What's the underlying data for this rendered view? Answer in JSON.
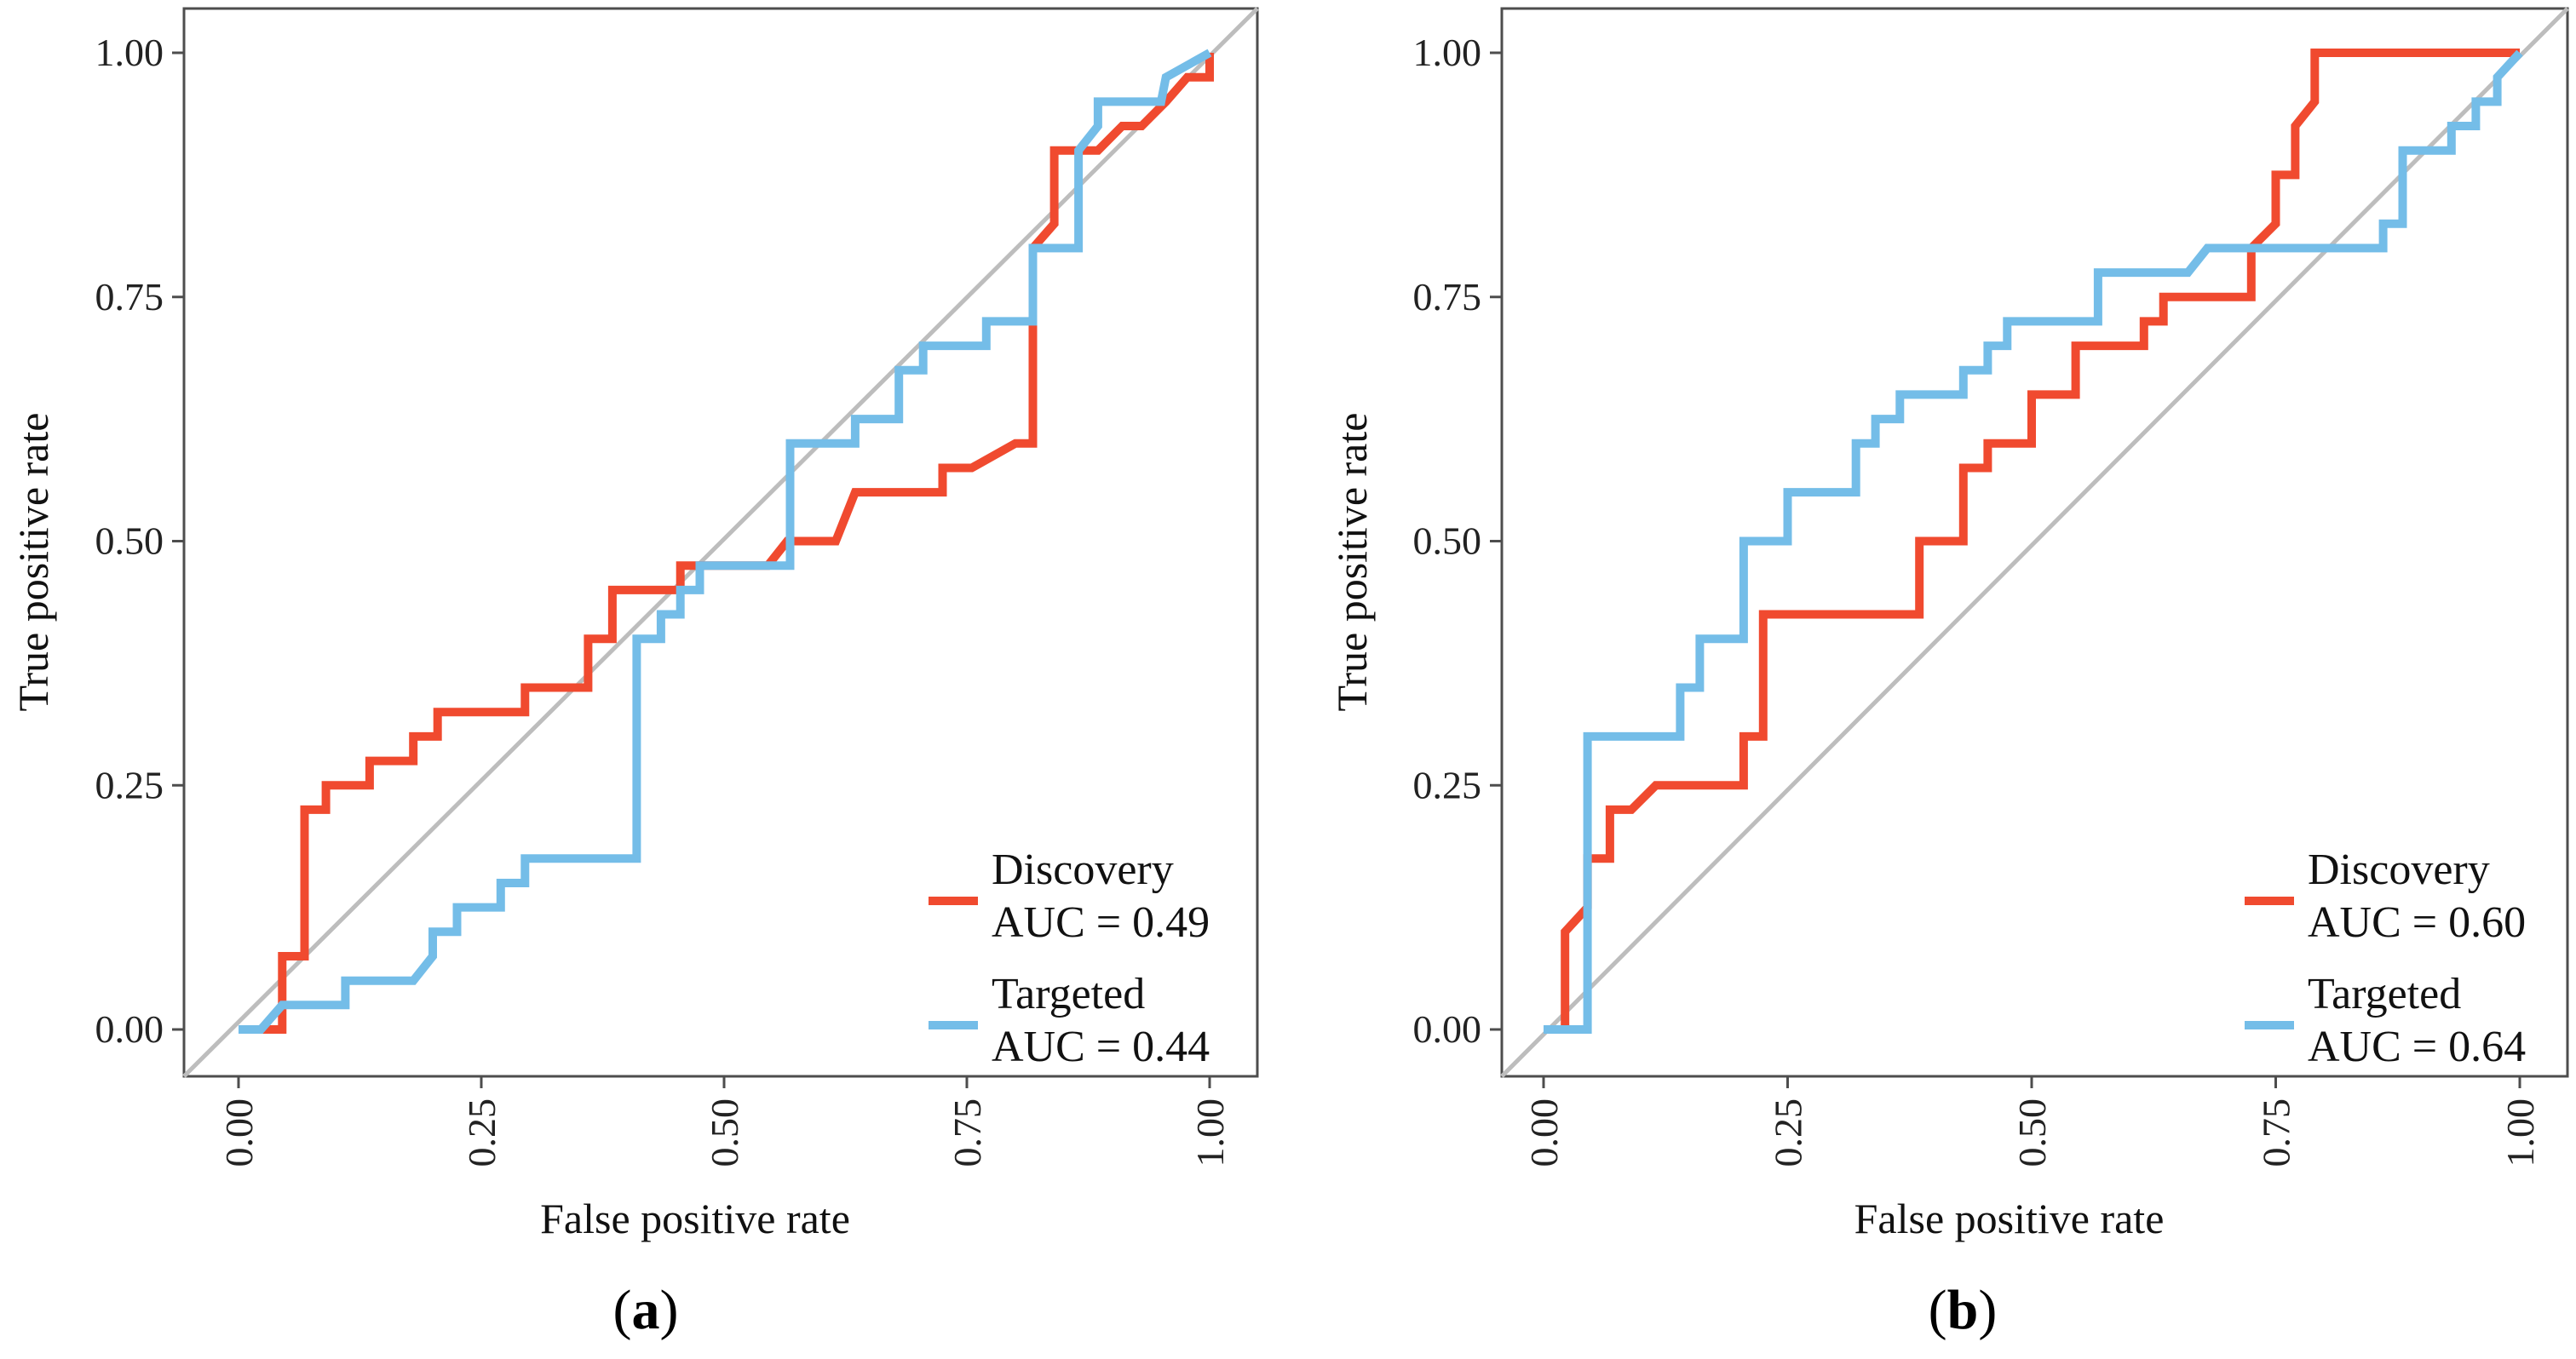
{
  "chart_data": [
    {
      "type": "line",
      "panel": "a",
      "caption": {
        "open": "(",
        "letter": "a",
        "close": ")"
      },
      "xlabel": "False positive rate",
      "ylabel": "True positive rate",
      "xlim": [
        0,
        1
      ],
      "ylim": [
        0,
        1
      ],
      "ticks": [
        0.0,
        0.25,
        0.5,
        0.75,
        1.0
      ],
      "tick_labels": [
        "0.00",
        "0.25",
        "0.50",
        "0.75",
        "1.00"
      ],
      "grid": false,
      "legend_position": "bottom-right",
      "diagonal": true,
      "series": [
        {
          "name": "Discovery",
          "auc_label": "AUC = 0.49",
          "color": "#f04a2f",
          "points": [
            [
              0,
              0
            ],
            [
              0.045,
              0
            ],
            [
              0.045,
              0.075
            ],
            [
              0.068,
              0.075
            ],
            [
              0.068,
              0.225
            ],
            [
              0.09,
              0.225
            ],
            [
              0.09,
              0.25
            ],
            [
              0.135,
              0.25
            ],
            [
              0.135,
              0.275
            ],
            [
              0.18,
              0.275
            ],
            [
              0.18,
              0.3
            ],
            [
              0.205,
              0.3
            ],
            [
              0.205,
              0.325
            ],
            [
              0.295,
              0.325
            ],
            [
              0.295,
              0.35
            ],
            [
              0.36,
              0.35
            ],
            [
              0.36,
              0.4
            ],
            [
              0.385,
              0.4
            ],
            [
              0.385,
              0.45
            ],
            [
              0.455,
              0.45
            ],
            [
              0.455,
              0.475
            ],
            [
              0.545,
              0.475
            ],
            [
              0.565,
              0.5
            ],
            [
              0.615,
              0.5
            ],
            [
              0.635,
              0.55
            ],
            [
              0.725,
              0.55
            ],
            [
              0.725,
              0.575
            ],
            [
              0.755,
              0.575
            ],
            [
              0.8,
              0.6
            ],
            [
              0.818,
              0.6
            ],
            [
              0.818,
              0.8
            ],
            [
              0.84,
              0.825
            ],
            [
              0.84,
              0.9
            ],
            [
              0.885,
              0.9
            ],
            [
              0.91,
              0.925
            ],
            [
              0.93,
              0.925
            ],
            [
              0.955,
              0.95
            ],
            [
              0.977,
              0.975
            ],
            [
              1.0,
              0.975
            ],
            [
              1.0,
              1.0
            ]
          ]
        },
        {
          "name": "Targeted",
          "auc_label": "AUC = 0.44",
          "color": "#74bde8",
          "points": [
            [
              0,
              0
            ],
            [
              0.023,
              0
            ],
            [
              0.045,
              0.025
            ],
            [
              0.11,
              0.025
            ],
            [
              0.11,
              0.05
            ],
            [
              0.18,
              0.05
            ],
            [
              0.2,
              0.075
            ],
            [
              0.2,
              0.1
            ],
            [
              0.225,
              0.1
            ],
            [
              0.225,
              0.125
            ],
            [
              0.27,
              0.125
            ],
            [
              0.27,
              0.15
            ],
            [
              0.295,
              0.15
            ],
            [
              0.295,
              0.175
            ],
            [
              0.41,
              0.175
            ],
            [
              0.41,
              0.4
            ],
            [
              0.435,
              0.4
            ],
            [
              0.435,
              0.425
            ],
            [
              0.455,
              0.425
            ],
            [
              0.455,
              0.45
            ],
            [
              0.475,
              0.45
            ],
            [
              0.475,
              0.475
            ],
            [
              0.568,
              0.475
            ],
            [
              0.568,
              0.6
            ],
            [
              0.635,
              0.6
            ],
            [
              0.635,
              0.625
            ],
            [
              0.68,
              0.625
            ],
            [
              0.68,
              0.675
            ],
            [
              0.705,
              0.675
            ],
            [
              0.705,
              0.7
            ],
            [
              0.77,
              0.7
            ],
            [
              0.77,
              0.725
            ],
            [
              0.818,
              0.725
            ],
            [
              0.818,
              0.8
            ],
            [
              0.865,
              0.8
            ],
            [
              0.865,
              0.9
            ],
            [
              0.885,
              0.925
            ],
            [
              0.885,
              0.95
            ],
            [
              0.95,
              0.95
            ],
            [
              0.955,
              0.975
            ],
            [
              1.0,
              1.0
            ]
          ]
        }
      ]
    },
    {
      "type": "line",
      "panel": "b",
      "caption": {
        "open": "(",
        "letter": "b",
        "close": ")"
      },
      "xlabel": "False positive rate",
      "ylabel": "True positive rate",
      "xlim": [
        0,
        1
      ],
      "ylim": [
        0,
        1
      ],
      "ticks": [
        0.0,
        0.25,
        0.5,
        0.75,
        1.0
      ],
      "tick_labels": [
        "0.00",
        "0.25",
        "0.50",
        "0.75",
        "1.00"
      ],
      "grid": false,
      "legend_position": "bottom-right",
      "diagonal": true,
      "series": [
        {
          "name": "Discovery",
          "auc_label": "AUC = 0.60",
          "color": "#f04a2f",
          "points": [
            [
              0,
              0
            ],
            [
              0.022,
              0
            ],
            [
              0.022,
              0.1
            ],
            [
              0.045,
              0.125
            ],
            [
              0.045,
              0.175
            ],
            [
              0.068,
              0.175
            ],
            [
              0.068,
              0.225
            ],
            [
              0.09,
              0.225
            ],
            [
              0.115,
              0.25
            ],
            [
              0.205,
              0.25
            ],
            [
              0.205,
              0.3
            ],
            [
              0.225,
              0.3
            ],
            [
              0.225,
              0.425
            ],
            [
              0.385,
              0.425
            ],
            [
              0.385,
              0.5
            ],
            [
              0.43,
              0.5
            ],
            [
              0.43,
              0.575
            ],
            [
              0.455,
              0.575
            ],
            [
              0.455,
              0.6
            ],
            [
              0.5,
              0.6
            ],
            [
              0.5,
              0.65
            ],
            [
              0.545,
              0.65
            ],
            [
              0.545,
              0.7
            ],
            [
              0.615,
              0.7
            ],
            [
              0.615,
              0.725
            ],
            [
              0.635,
              0.725
            ],
            [
              0.635,
              0.75
            ],
            [
              0.725,
              0.75
            ],
            [
              0.725,
              0.8
            ],
            [
              0.75,
              0.825
            ],
            [
              0.75,
              0.875
            ],
            [
              0.77,
              0.875
            ],
            [
              0.77,
              0.925
            ],
            [
              0.79,
              0.95
            ],
            [
              0.79,
              1.0
            ],
            [
              1.0,
              1.0
            ]
          ]
        },
        {
          "name": "Targeted",
          "auc_label": "AUC = 0.64",
          "color": "#74bde8",
          "points": [
            [
              0,
              0
            ],
            [
              0.045,
              0
            ],
            [
              0.045,
              0.3
            ],
            [
              0.14,
              0.3
            ],
            [
              0.14,
              0.35
            ],
            [
              0.16,
              0.35
            ],
            [
              0.16,
              0.4
            ],
            [
              0.205,
              0.4
            ],
            [
              0.205,
              0.5
            ],
            [
              0.25,
              0.5
            ],
            [
              0.25,
              0.55
            ],
            [
              0.32,
              0.55
            ],
            [
              0.32,
              0.6
            ],
            [
              0.34,
              0.6
            ],
            [
              0.34,
              0.625
            ],
            [
              0.365,
              0.625
            ],
            [
              0.365,
              0.65
            ],
            [
              0.43,
              0.65
            ],
            [
              0.43,
              0.675
            ],
            [
              0.455,
              0.675
            ],
            [
              0.455,
              0.7
            ],
            [
              0.475,
              0.7
            ],
            [
              0.475,
              0.725
            ],
            [
              0.568,
              0.725
            ],
            [
              0.568,
              0.775
            ],
            [
              0.66,
              0.775
            ],
            [
              0.68,
              0.8
            ],
            [
              0.86,
              0.8
            ],
            [
              0.86,
              0.825
            ],
            [
              0.88,
              0.825
            ],
            [
              0.88,
              0.9
            ],
            [
              0.93,
              0.9
            ],
            [
              0.93,
              0.925
            ],
            [
              0.955,
              0.925
            ],
            [
              0.955,
              0.95
            ],
            [
              0.977,
              0.95
            ],
            [
              0.977,
              0.975
            ],
            [
              1.0,
              1.0
            ]
          ]
        }
      ]
    }
  ]
}
